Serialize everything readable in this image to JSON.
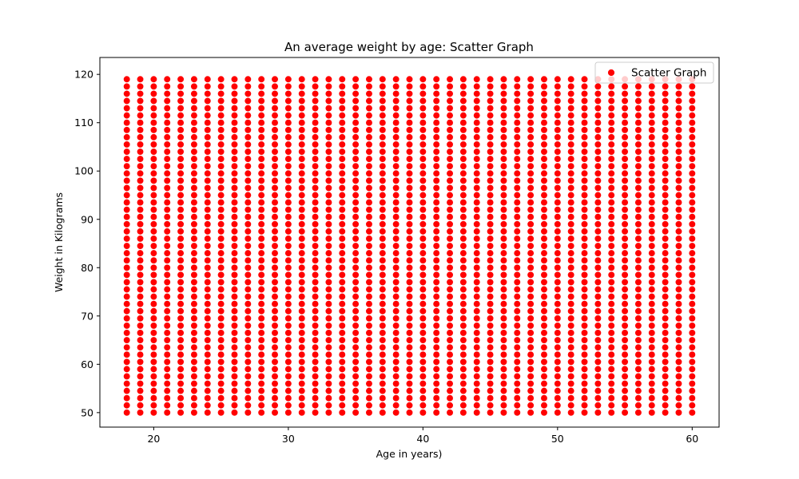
{
  "chart_data": {
    "type": "scatter",
    "title": "An average weight by age: Scatter Graph",
    "xlabel": "Age in years)",
    "ylabel": "Weight in Kilograms",
    "xlim": [
      16.0,
      62.0
    ],
    "ylim": [
      47.0,
      123.5
    ],
    "xticks": [
      20,
      30,
      40,
      50,
      60
    ],
    "yticks": [
      50,
      60,
      70,
      80,
      90,
      100,
      110,
      120
    ],
    "grid": false,
    "legend_position": "top-right",
    "series": [
      {
        "name": "Scatter Graph",
        "color": "#ff0000",
        "edge_color": "#ffffff",
        "marker": "circle",
        "x_values": [
          18,
          19,
          20,
          21,
          22,
          23,
          24,
          25,
          26,
          27,
          28,
          29,
          30,
          31,
          32,
          33,
          34,
          35,
          36,
          37,
          38,
          39,
          40,
          41,
          42,
          43,
          44,
          45,
          46,
          47,
          48,
          49,
          50,
          51,
          52,
          53,
          54,
          55,
          56,
          57,
          58,
          59,
          60
        ],
        "y_range": [
          50,
          120
        ],
        "y_step": 1.5
      }
    ]
  }
}
